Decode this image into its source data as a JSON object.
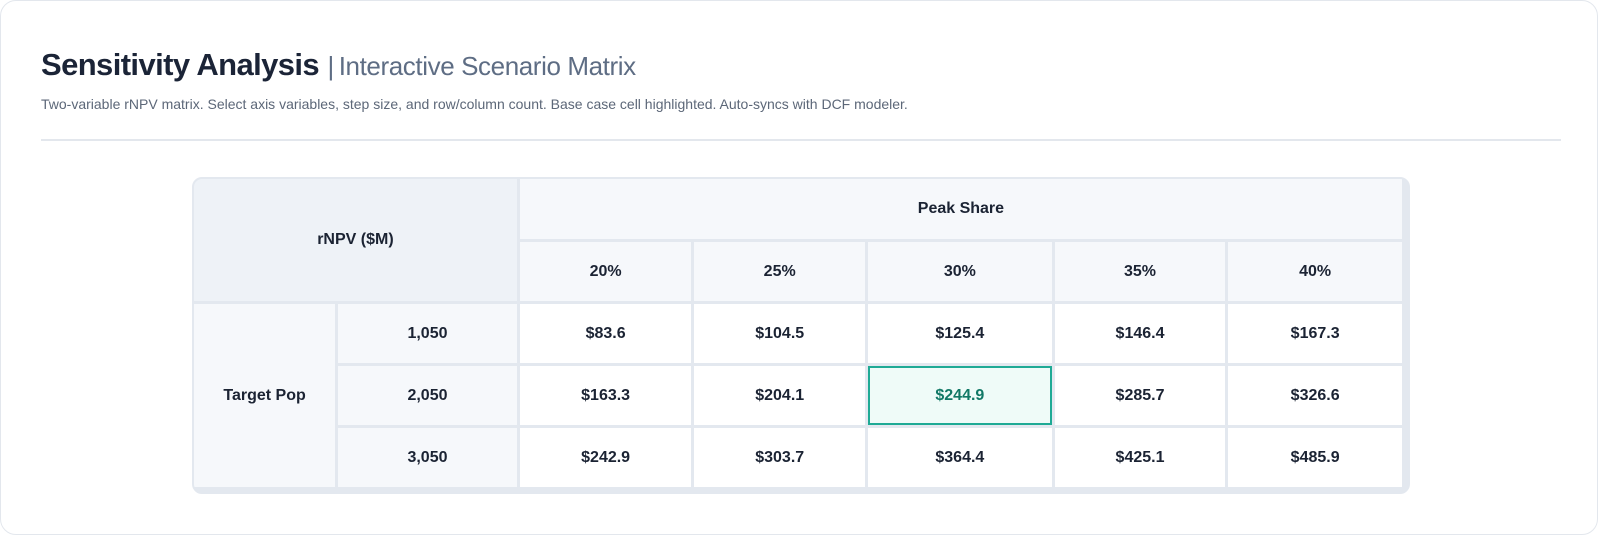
{
  "header": {
    "title": "Sensitivity Analysis",
    "separator": "|",
    "subtitle": "Interactive Scenario Matrix",
    "description": "Two-variable rNPV matrix. Select axis variables, step size, and row/column count. Base case cell highlighted. Auto-syncs with DCF modeler."
  },
  "matrix": {
    "corner_label": "rNPV ($M)",
    "column_variable": "Peak Share",
    "row_variable": "Target Pop",
    "columns": [
      "20%",
      "25%",
      "30%",
      "35%",
      "40%"
    ],
    "rows": [
      {
        "label": "1,050",
        "values": [
          "$83.6",
          "$104.5",
          "$125.4",
          "$146.4",
          "$167.3"
        ]
      },
      {
        "label": "2,050",
        "values": [
          "$163.3",
          "$204.1",
          "$244.9",
          "$285.7",
          "$326.6"
        ]
      },
      {
        "label": "3,050",
        "values": [
          "$242.9",
          "$303.7",
          "$364.4",
          "$425.1",
          "$485.9"
        ]
      }
    ],
    "base_case": {
      "row": 1,
      "column": 2
    },
    "colors": {
      "base_border": "#1faa95",
      "base_fill": "#effbf8",
      "base_text": "#117866"
    }
  }
}
